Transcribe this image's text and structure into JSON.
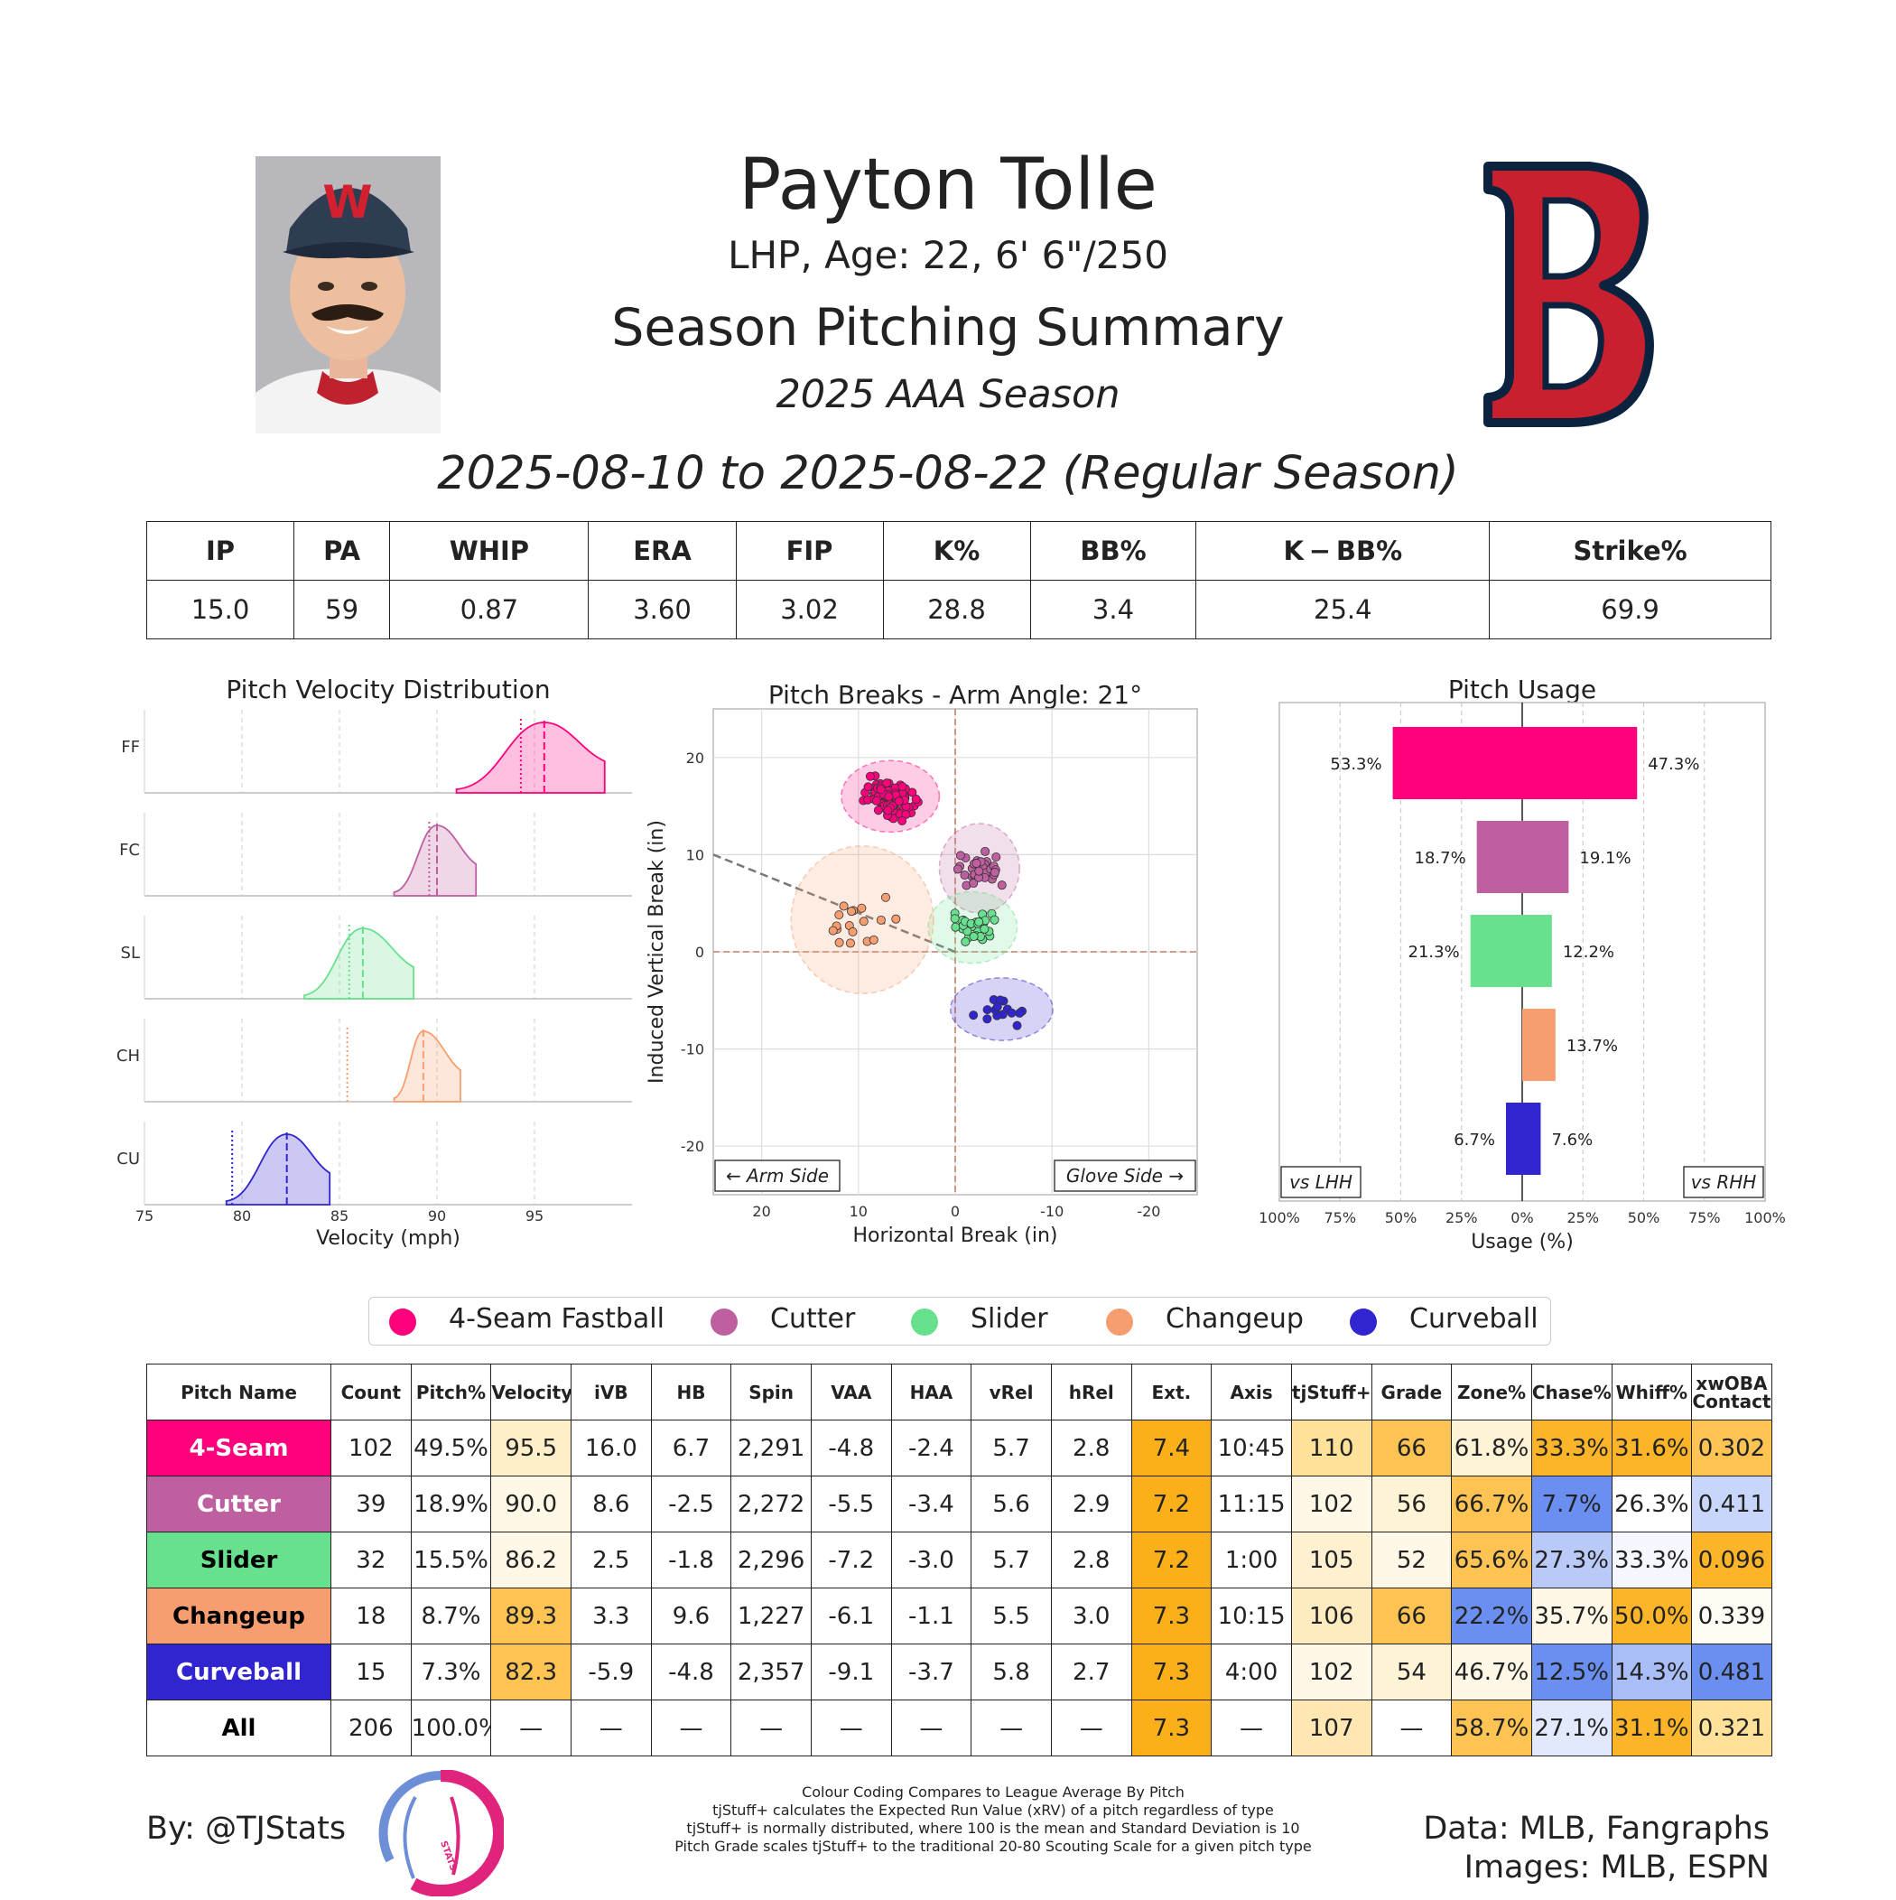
{
  "header": {
    "name": "Payton Tolle",
    "bio": "LHP, Age: 22, 6' 6\"/250",
    "title": "Season Pitching Summary",
    "season": "2025 AAA Season",
    "date_range": "2025-08-10 to 2025-08-22 (Regular Season)"
  },
  "summary": {
    "headers": [
      "IP",
      "PA",
      "WHIP",
      "ERA",
      "FIP",
      "K%",
      "BB%",
      "K − BB%",
      "Strike%"
    ],
    "values": [
      "15.0",
      "59",
      "0.87",
      "3.60",
      "3.02",
      "28.8",
      "3.4",
      "25.4",
      "69.9"
    ]
  },
  "colors": {
    "FF": "#FF007D",
    "FC": "#BE5FA0",
    "SL": "#67E18D",
    "CH": "#F79E70",
    "CU": "#3025CE"
  },
  "legend": [
    "4-Seam Fastball",
    "Cutter",
    "Slider",
    "Changeup",
    "Curveball"
  ],
  "chart_data": [
    {
      "type": "area",
      "title": "Pitch Velocity Distribution",
      "xlabel": "Velocity (mph)",
      "xlim": [
        75,
        100
      ],
      "xticks": [
        "75",
        "80",
        "85",
        "90",
        "95"
      ],
      "series": [
        {
          "name": "FF",
          "min": 91.0,
          "max": 98.6,
          "mean": 95.5,
          "league": 94.3
        },
        {
          "name": "FC",
          "min": 87.8,
          "max": 92.0,
          "mean": 90.0,
          "league": 89.6
        },
        {
          "name": "SL",
          "min": 83.2,
          "max": 88.8,
          "mean": 86.2,
          "league": 85.5
        },
        {
          "name": "CH",
          "min": 87.8,
          "max": 91.2,
          "mean": 89.3,
          "league": 85.4
        },
        {
          "name": "CU",
          "min": 79.2,
          "max": 84.5,
          "mean": 82.3,
          "league": 79.5
        }
      ]
    },
    {
      "type": "scatter",
      "title": "Pitch Breaks - Arm Angle: 21°",
      "xlabel": "Horizontal Break (in)",
      "ylabel": "Induced Vertical Break (in)",
      "xlim": [
        25,
        -25
      ],
      "ylim": [
        -25,
        25
      ],
      "xticks": [
        "20",
        "10",
        "0",
        "-10",
        "-20"
      ],
      "yticks": [
        "20",
        "10",
        "0",
        "-10",
        "-20"
      ],
      "annotations": [
        "← Arm Side",
        "Glove Side →"
      ],
      "series": [
        {
          "name": "FF",
          "count": 102,
          "center": [
            6.7,
            16.0
          ],
          "spread": [
            2.2,
            1.6
          ]
        },
        {
          "name": "FC",
          "count": 39,
          "center": [
            -2.5,
            8.6
          ],
          "spread": [
            1.8,
            2.0
          ]
        },
        {
          "name": "SL",
          "count": 32,
          "center": [
            -1.8,
            2.5
          ],
          "spread": [
            2.0,
            1.6
          ]
        },
        {
          "name": "CH",
          "count": 18,
          "center": [
            9.6,
            3.3
          ],
          "spread": [
            3.2,
            3.3
          ]
        },
        {
          "name": "CU",
          "count": 15,
          "center": [
            -4.8,
            -5.9
          ],
          "spread": [
            2.3,
            1.4
          ]
        }
      ]
    },
    {
      "type": "bar",
      "title": "Pitch Usage",
      "xlabel": "Usage (%)",
      "xticks": [
        "100%",
        "75%",
        "50%",
        "25%",
        "0%",
        "25%",
        "50%",
        "75%",
        "100%"
      ],
      "labels": [
        "vs LHH",
        "vs RHH"
      ],
      "categories": [
        "FF",
        "FC",
        "SL",
        "CH",
        "CU"
      ],
      "series": [
        {
          "name": "vs LHH",
          "values": [
            53.3,
            18.7,
            21.3,
            0,
            6.7
          ]
        },
        {
          "name": "vs RHH",
          "values": [
            47.3,
            19.1,
            12.2,
            13.7,
            7.6
          ]
        }
      ]
    }
  ],
  "pitch_table": {
    "headers": [
      "Pitch Name",
      "Count",
      "Pitch%",
      "Velocity",
      "iVB",
      "HB",
      "Spin",
      "VAA",
      "HAA",
      "vRel",
      "hRel",
      "Ext.",
      "Axis",
      "tjStuff+",
      "Grade",
      "Zone%",
      "Chase%",
      "Whiff%",
      "xwOBA Contact"
    ],
    "rows": [
      {
        "cells": [
          "4-Seam",
          "102",
          "49.5%",
          "95.5",
          "16.0",
          "6.7",
          "2,291",
          "-4.8",
          "-2.4",
          "5.7",
          "2.8",
          "7.4",
          "10:45",
          "110",
          "66",
          "61.8%",
          "33.3%",
          "31.6%",
          "0.302"
        ]
      },
      {
        "cells": [
          "Cutter",
          "39",
          "18.9%",
          "90.0",
          "8.6",
          "-2.5",
          "2,272",
          "-5.5",
          "-3.4",
          "5.6",
          "2.9",
          "7.2",
          "11:15",
          "102",
          "56",
          "66.7%",
          "7.7%",
          "26.3%",
          "0.411"
        ]
      },
      {
        "cells": [
          "Slider",
          "32",
          "15.5%",
          "86.2",
          "2.5",
          "-1.8",
          "2,296",
          "-7.2",
          "-3.0",
          "5.7",
          "2.8",
          "7.2",
          "1:00",
          "105",
          "52",
          "65.6%",
          "27.3%",
          "33.3%",
          "0.096"
        ]
      },
      {
        "cells": [
          "Changeup",
          "18",
          "8.7%",
          "89.3",
          "3.3",
          "9.6",
          "1,227",
          "-6.1",
          "-1.1",
          "5.5",
          "3.0",
          "7.3",
          "10:15",
          "106",
          "66",
          "22.2%",
          "35.7%",
          "50.0%",
          "0.339"
        ]
      },
      {
        "cells": [
          "Curveball",
          "15",
          "7.3%",
          "82.3",
          "-5.9",
          "-4.8",
          "2,357",
          "-9.1",
          "-3.7",
          "5.8",
          "2.7",
          "7.3",
          "4:00",
          "102",
          "54",
          "46.7%",
          "12.5%",
          "14.3%",
          "0.481"
        ]
      },
      {
        "cells": [
          "All",
          "206",
          "100.0%",
          "—",
          "—",
          "—",
          "—",
          "—",
          "—",
          "—",
          "—",
          "7.3",
          "—",
          "107",
          "—",
          "58.7%",
          "27.1%",
          "31.1%",
          "0.321"
        ]
      }
    ],
    "row_colors": [
      "#FF007D",
      "#BE5FA0",
      "#67E18D",
      "#F79E70",
      "#3025CE",
      "#ffffff"
    ],
    "row_text_colors": [
      "#ffffff",
      "#ffffff",
      "#000000",
      "#000000",
      "#ffffff",
      "#000000"
    ],
    "cell_fills": [
      {
        "3": "#FFEFC8",
        "11": "#FBB01A",
        "13": "#FFE19A",
        "14": "#FDC454",
        "15": "#FFF3D6",
        "16": "#FCB428",
        "17": "#FCB428",
        "18": "#FDC454"
      },
      {
        "3": "#FFF8E6",
        "11": "#FBB01A",
        "13": "#FFF8E6",
        "14": "#FFF3D6",
        "15": "#FDC454",
        "16": "#6A8FF0",
        "17": "#FFFFFF",
        "18": "#C8D6FB"
      },
      {
        "3": "#FFF8E6",
        "11": "#FBB01A",
        "13": "#FFF0CF",
        "14": "#FFF8E6",
        "15": "#FDC454",
        "16": "#B9CAF8",
        "17": "#F6F7FE",
        "18": "#FCB428"
      },
      {
        "3": "#FDC454",
        "11": "#FBB01A",
        "13": "#FFEBC0",
        "14": "#FDC454",
        "15": "#6A8FF0",
        "16": "#FFF8E6",
        "17": "#FCB428",
        "18": "#FFFCF4"
      },
      {
        "3": "#FDC454",
        "11": "#FBB01A",
        "13": "#FFF8E6",
        "14": "#FFF3D6",
        "15": "#FFF8E6",
        "16": "#6A8FF0",
        "17": "#A9BDF6",
        "18": "#6A8FF0"
      },
      {
        "11": "#FBB01A",
        "13": "#FFE7B4",
        "15": "#FDC454",
        "16": "#E2E9FC",
        "17": "#FCB428",
        "18": "#FFE19A"
      }
    ]
  },
  "footer": {
    "byline": "By: @TJStats",
    "data_credit": "Data: MLB, Fangraphs",
    "image_credit": "Images: MLB, ESPN",
    "notes": [
      "Colour Coding Compares to League Average By Pitch",
      "tjStuff+ calculates the Expected Run Value (xRV) of a pitch regardless of type",
      "tjStuff+ is normally distributed, where 100 is the mean and Standard Deviation is 10",
      "Pitch Grade scales tjStuff+ to the traditional 20-80 Scouting Scale for a given pitch type"
    ],
    "logo_text": "STATS"
  }
}
